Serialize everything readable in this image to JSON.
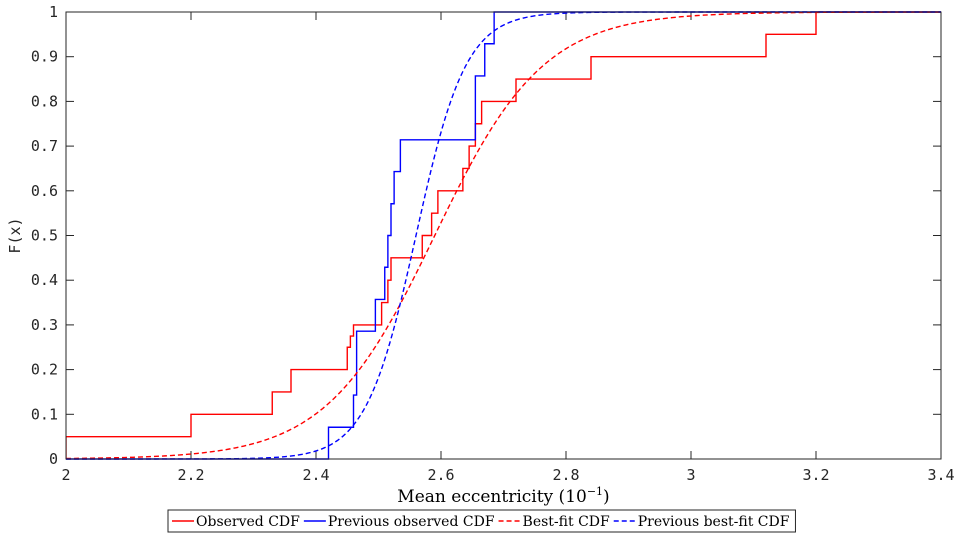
{
  "chart_data": {
    "type": "line",
    "xlabel": "Mean eccentricity (10",
    "xlabel_exp": "−1",
    "xlabel_close": ")",
    "ylabel": "F(x)",
    "xlim": [
      2,
      3.4
    ],
    "ylim": [
      0,
      1
    ],
    "xticks": [
      "2",
      "2.2",
      "2.4",
      "2.6",
      "2.8",
      "3",
      "3.2",
      "3.4"
    ],
    "xtick_values": [
      2,
      2.2,
      2.4,
      2.6,
      2.8,
      3,
      3.2,
      3.4
    ],
    "yticks": [
      "0",
      "0.1",
      "0.2",
      "0.3",
      "0.4",
      "0.5",
      "0.6",
      "0.7",
      "0.8",
      "0.9",
      "1"
    ],
    "ytick_values": [
      0,
      0.1,
      0.2,
      0.3,
      0.4,
      0.5,
      0.6,
      0.7,
      0.8,
      0.9,
      1
    ],
    "grid": false,
    "legend_position": "bottom-outside",
    "series": [
      {
        "name": "Observed CDF",
        "color": "#ff0000",
        "style": "solid",
        "kind": "step",
        "x": [
          2,
          2,
          2.2,
          2.2,
          2.33,
          2.33,
          2.36,
          2.36,
          2.45,
          2.45,
          2.455,
          2.455,
          2.46,
          2.46,
          2.505,
          2.505,
          2.515,
          2.515,
          2.52,
          2.52,
          2.53,
          2.53,
          2.57,
          2.57,
          2.585,
          2.585,
          2.595,
          2.595,
          2.635,
          2.635,
          2.645,
          2.645,
          2.655,
          2.655,
          2.665,
          2.665,
          2.72,
          2.72,
          2.84,
          2.84,
          3.12,
          3.12,
          3.2,
          3.2,
          3.4
        ],
        "y": [
          0,
          0.05,
          0.05,
          0.1,
          0.1,
          0.15,
          0.15,
          0.2,
          0.2,
          0.25,
          0.25,
          0.275,
          0.275,
          0.3,
          0.3,
          0.35,
          0.35,
          0.4,
          0.4,
          0.45,
          0.45,
          0.45,
          0.45,
          0.5,
          0.5,
          0.55,
          0.55,
          0.6,
          0.6,
          0.65,
          0.65,
          0.7,
          0.7,
          0.75,
          0.75,
          0.8,
          0.8,
          0.85,
          0.85,
          0.9,
          0.9,
          0.95,
          0.95,
          1.0,
          1.0
        ]
      },
      {
        "name": "Previous observed CDF",
        "color": "#0000ff",
        "style": "solid",
        "kind": "step",
        "x": [
          2,
          2.42,
          2.42,
          2.46,
          2.46,
          2.465,
          2.465,
          2.495,
          2.495,
          2.51,
          2.51,
          2.515,
          2.515,
          2.52,
          2.52,
          2.525,
          2.525,
          2.535,
          2.535,
          2.555,
          2.555,
          2.655,
          2.655,
          2.67,
          2.67,
          2.685,
          2.685,
          3.4
        ],
        "y": [
          0,
          0,
          0.071,
          0.071,
          0.143,
          0.143,
          0.286,
          0.286,
          0.357,
          0.357,
          0.429,
          0.429,
          0.5,
          0.5,
          0.571,
          0.571,
          0.643,
          0.643,
          0.714,
          0.714,
          0.714,
          0.714,
          0.857,
          0.857,
          0.929,
          0.929,
          1.0,
          1.0
        ]
      },
      {
        "name": "Best-fit CDF",
        "color": "#ff0000",
        "style": "dashed",
        "kind": "logistic",
        "mu": 2.59,
        "s": 0.087
      },
      {
        "name": "Previous best-fit CDF",
        "color": "#0000ff",
        "style": "dashed",
        "kind": "logistic",
        "mu": 2.56,
        "s": 0.04
      }
    ]
  }
}
